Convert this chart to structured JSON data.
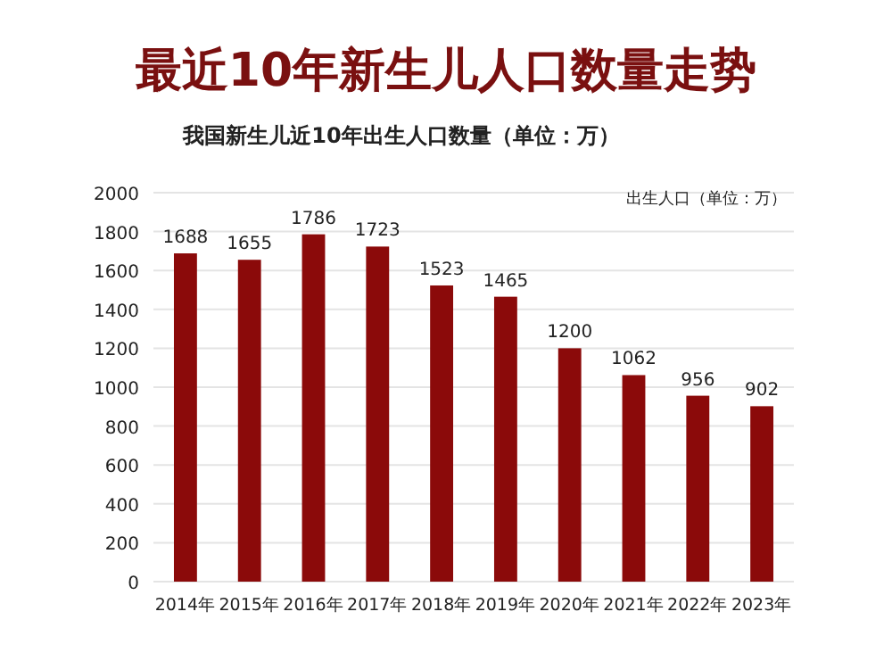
{
  "chart_data": {
    "type": "bar",
    "title": "最近10年新生儿人口数量走势",
    "subtitle": "我国新生儿近10年出生人口数量（单位：万）",
    "categories": [
      "2014年",
      "2015年",
      "2016年",
      "2017年",
      "2018年",
      "2019年",
      "2020年",
      "2021年",
      "2022年",
      "2023年"
    ],
    "values": [
      1688,
      1655,
      1786,
      1723,
      1523,
      1465,
      1200,
      1062,
      956,
      902
    ],
    "color": "#8b0a0a",
    "ylim": [
      0,
      2000
    ],
    "yticks": [
      0,
      200,
      400,
      600,
      800,
      1000,
      1200,
      1400,
      1600,
      1800,
      2000
    ],
    "grid": "y",
    "data_labels": true,
    "annotations": [
      "出生人口（单位：万）"
    ]
  }
}
